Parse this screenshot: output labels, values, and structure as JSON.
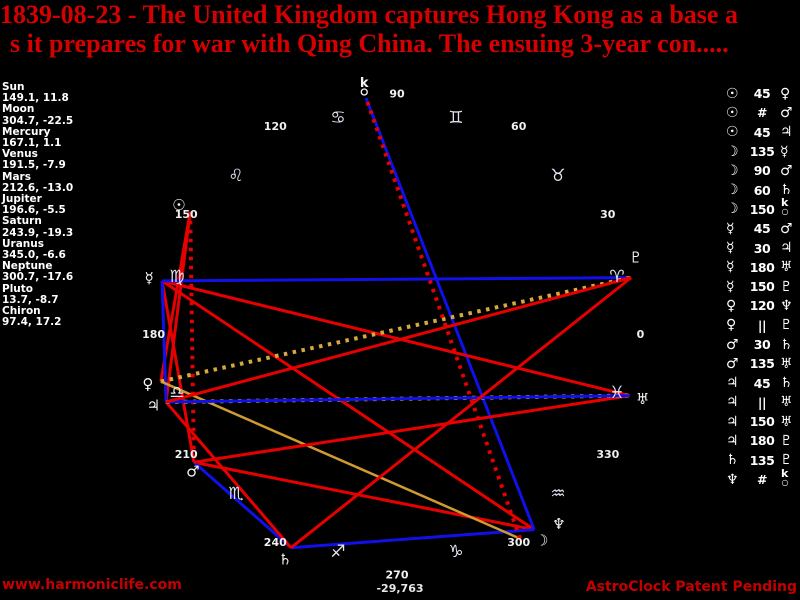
{
  "title": {
    "line1": "1839-08-23 - The United Kingdom captures Hong Kong as a base a",
    "line2": "s it prepares for war with Qing China. The ensuing 3-year con....."
  },
  "glyphs": {
    "sun": "☉",
    "moon": "☽",
    "mercury": "☿",
    "venus": "♀",
    "mars": "♂",
    "jupiter": "♃",
    "saturn": "♄",
    "uranus": "♅",
    "neptune": "♆",
    "pluto": "♇",
    "chiron": "chiron-composed"
  },
  "planets": [
    {
      "name": "sun",
      "label": "Sun",
      "lon": 149.1,
      "dec": 11.8,
      "display": "149.1, 11.8"
    },
    {
      "name": "moon",
      "label": "Moon",
      "lon": 304.7,
      "dec": -22.5,
      "display": "304.7, -22.5"
    },
    {
      "name": "mercury",
      "label": "Mercury",
      "lon": 167.1,
      "dec": 1.1,
      "display": "167.1, 1.1"
    },
    {
      "name": "venus",
      "label": "Venus",
      "lon": 191.5,
      "dec": -7.9,
      "display": "191.5, -7.9"
    },
    {
      "name": "mars",
      "label": "Mars",
      "lon": 212.6,
      "dec": -13.0,
      "display": "212.6, -13.0"
    },
    {
      "name": "jupiter",
      "label": "Jupiter",
      "lon": 196.6,
      "dec": -5.5,
      "display": "196.6, -5.5"
    },
    {
      "name": "saturn",
      "label": "Saturn",
      "lon": 243.9,
      "dec": -19.3,
      "display": "243.9, -19.3"
    },
    {
      "name": "uranus",
      "label": "Uranus",
      "lon": 345.0,
      "dec": -6.6,
      "display": "345.0, -6.6"
    },
    {
      "name": "neptune",
      "label": "Neptune",
      "lon": 300.7,
      "dec": -17.6,
      "display": "300.7, -17.6"
    },
    {
      "name": "pluto",
      "label": "Pluto",
      "lon": 13.7,
      "dec": -8.7,
      "display": "13.7, -8.7"
    },
    {
      "name": "chiron",
      "label": "Chiron",
      "lon": 97.4,
      "dec": 17.2,
      "display": "97.4, 17.2"
    }
  ],
  "signs": [
    {
      "name": "aries",
      "glyph": "♈"
    },
    {
      "name": "taurus",
      "glyph": "♉"
    },
    {
      "name": "gemini",
      "glyph": "♊"
    },
    {
      "name": "cancer",
      "glyph": "♋"
    },
    {
      "name": "leo",
      "glyph": "♌"
    },
    {
      "name": "virgo",
      "glyph": "♍"
    },
    {
      "name": "libra",
      "glyph": "♎"
    },
    {
      "name": "scorpio",
      "glyph": "♏"
    },
    {
      "name": "sagittarius",
      "glyph": "♐"
    },
    {
      "name": "capricorn",
      "glyph": "♑"
    },
    {
      "name": "aquarius",
      "glyph": "♒"
    },
    {
      "name": "pisces",
      "glyph": "♓"
    }
  ],
  "degree_labels": [
    "0",
    "30",
    "60",
    "90",
    "120",
    "150",
    "180",
    "210",
    "240",
    "270",
    "300",
    "330"
  ],
  "aspect_list": [
    {
      "p1": "sun",
      "symbol": "45",
      "p2": "venus",
      "style": "red"
    },
    {
      "p1": "sun",
      "symbol": "#",
      "p2": "mars",
      "style": "red-dot"
    },
    {
      "p1": "sun",
      "symbol": "45",
      "p2": "jupiter",
      "style": "red"
    },
    {
      "p1": "moon",
      "symbol": "135",
      "p2": "mercury",
      "style": "red"
    },
    {
      "p1": "moon",
      "symbol": "90",
      "p2": "mars",
      "style": "red"
    },
    {
      "p1": "moon",
      "symbol": "60",
      "p2": "saturn",
      "style": "blue"
    },
    {
      "p1": "moon",
      "symbol": "150",
      "p2": "chiron",
      "style": "blue"
    },
    {
      "p1": "mercury",
      "symbol": "45",
      "p2": "mars",
      "style": "red"
    },
    {
      "p1": "mercury",
      "symbol": "30",
      "p2": "jupiter",
      "style": "blue"
    },
    {
      "p1": "mercury",
      "symbol": "180",
      "p2": "uranus",
      "style": "red"
    },
    {
      "p1": "mercury",
      "symbol": "150",
      "p2": "pluto",
      "style": "blue"
    },
    {
      "p1": "venus",
      "symbol": "120",
      "p2": "neptune",
      "style": "gold"
    },
    {
      "p1": "venus",
      "symbol": "||",
      "p2": "pluto",
      "style": "gold-dot"
    },
    {
      "p1": "mars",
      "symbol": "30",
      "p2": "saturn",
      "style": "blue"
    },
    {
      "p1": "mars",
      "symbol": "135",
      "p2": "uranus",
      "style": "red"
    },
    {
      "p1": "jupiter",
      "symbol": "45",
      "p2": "saturn",
      "style": "red"
    },
    {
      "p1": "jupiter",
      "symbol": "||",
      "p2": "uranus",
      "style": "gold-dot"
    },
    {
      "p1": "jupiter",
      "symbol": "150",
      "p2": "uranus",
      "style": "blue"
    },
    {
      "p1": "jupiter",
      "symbol": "180",
      "p2": "pluto",
      "style": "red"
    },
    {
      "p1": "saturn",
      "symbol": "135",
      "p2": "pluto",
      "style": "red"
    },
    {
      "p1": "neptune",
      "symbol": "#",
      "p2": "chiron",
      "style": "red-dot"
    }
  ],
  "line_colors": {
    "red": "#e60000",
    "blue": "#1010e8",
    "gold": "#cf9b30",
    "red-dot": "#e60000",
    "gold-dot": "#d8a83e"
  },
  "footer": {
    "website": "www.harmoniclife.com",
    "brand": "AstroClock Patent Pending",
    "bottom_value": "-29,763"
  }
}
